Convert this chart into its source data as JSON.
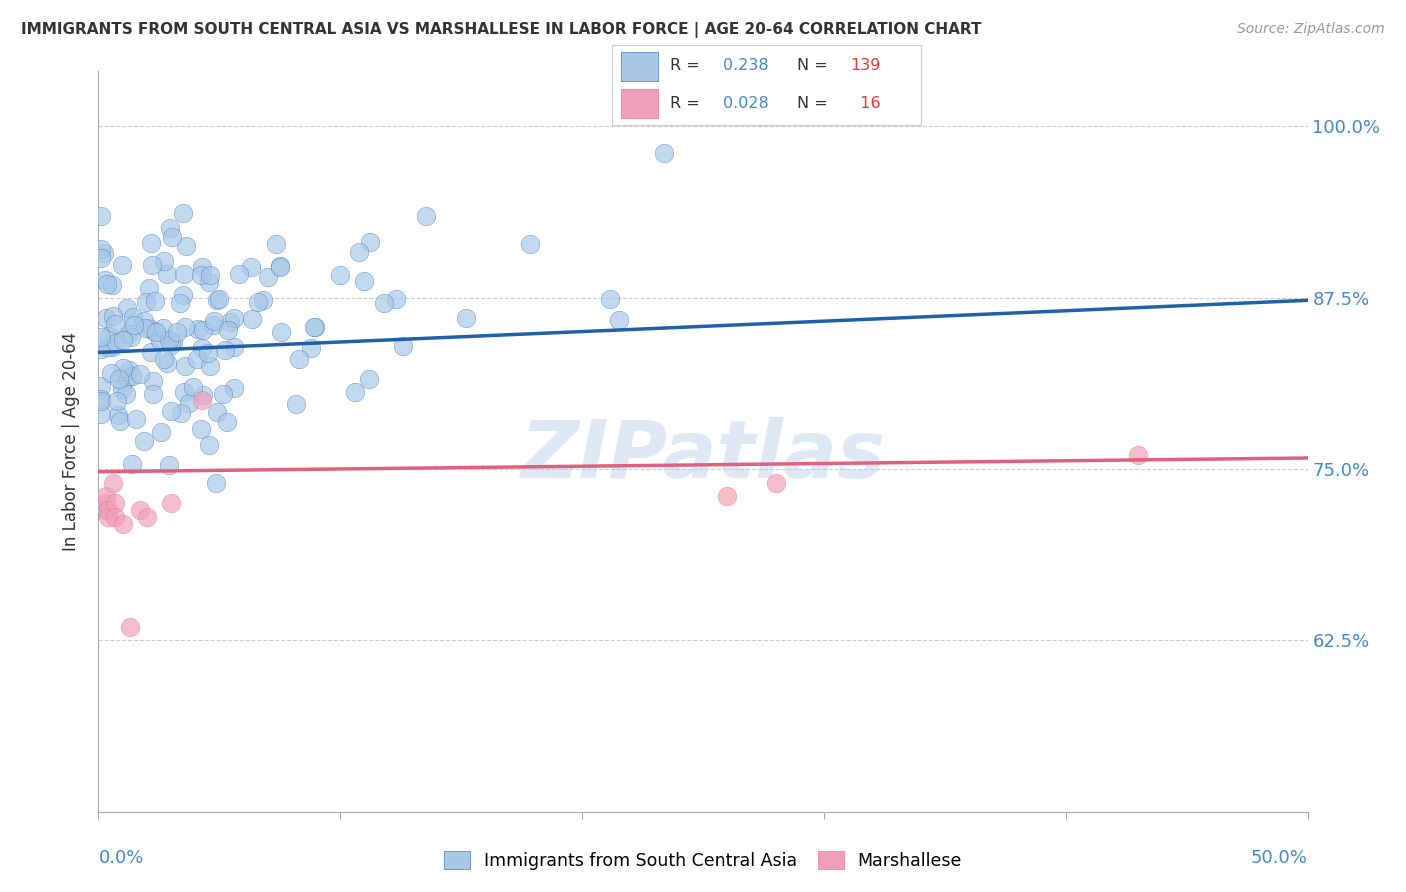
{
  "title": "IMMIGRANTS FROM SOUTH CENTRAL ASIA VS MARSHALLESE IN LABOR FORCE | AGE 20-64 CORRELATION CHART",
  "source": "Source: ZipAtlas.com",
  "ylabel": "In Labor Force | Age 20-64",
  "yticks": [
    0.625,
    0.75,
    0.875,
    1.0
  ],
  "ytick_labels": [
    "62.5%",
    "75.0%",
    "87.5%",
    "100.0%"
  ],
  "xmin": 0.0,
  "xmax": 0.5,
  "ymin": 0.5,
  "ymax": 1.04,
  "blue_R": 0.238,
  "blue_N": 139,
  "pink_R": 0.028,
  "pink_N": 16,
  "blue_color": "#A8C8E8",
  "pink_color": "#F0A0B8",
  "blue_line_color": "#2060A8",
  "pink_line_color": "#E06080",
  "legend_label_blue": "Immigrants from South Central Asia",
  "legend_label_pink": "Marshallese",
  "watermark": "ZIPatlas",
  "title_color": "#333333",
  "axis_label_color": "#4488CC",
  "grid_color": "#CCCCCC",
  "background_color": "#FFFFFF",
  "blue_line_y0": 0.835,
  "blue_line_y1": 0.873,
  "pink_line_y0": 0.748,
  "pink_line_y1": 0.758,
  "legend_R_color": "#4488CC",
  "legend_N_color": "#EE3333"
}
